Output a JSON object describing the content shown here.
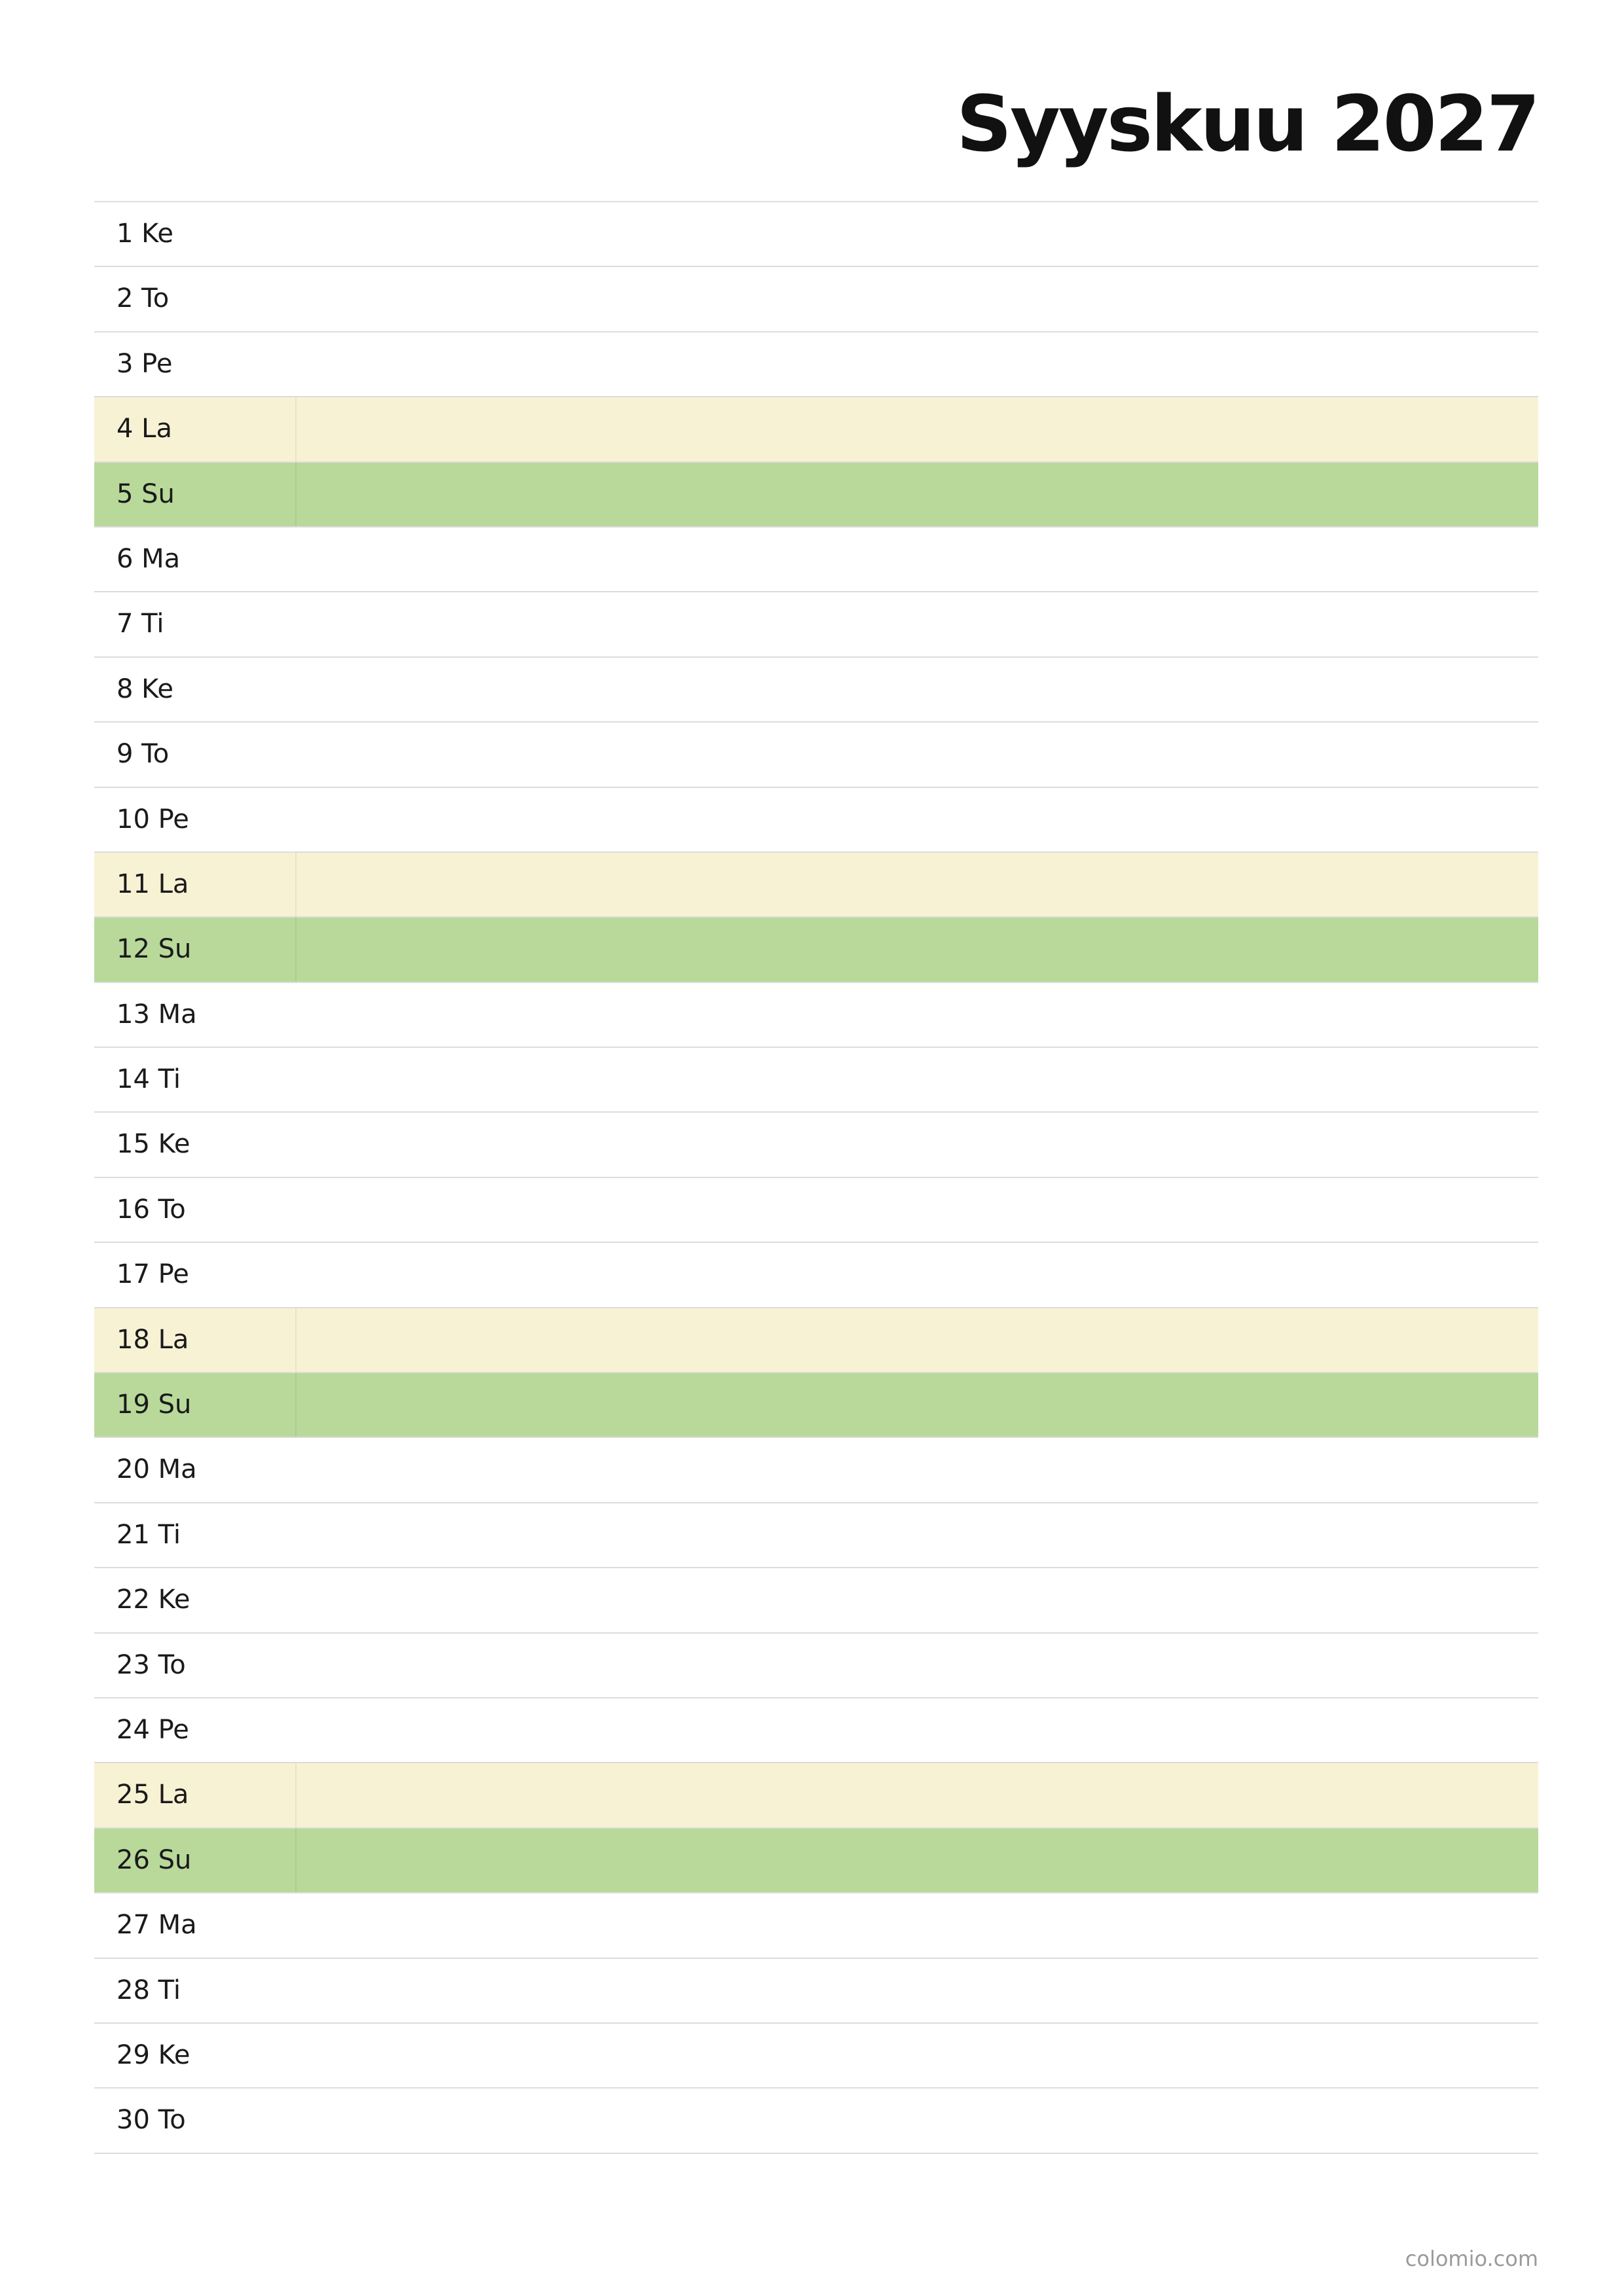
{
  "header": {
    "title": "Syyskuu 2027"
  },
  "rows": [
    {
      "label": "1 Ke"
    },
    {
      "label": "2 To"
    },
    {
      "label": "3 Pe"
    },
    {
      "label": "4 La",
      "color": "#f8f2d4"
    },
    {
      "label": "5 Su",
      "color": "#b8d99a"
    },
    {
      "label": "6 Ma"
    },
    {
      "label": "7 Ti"
    },
    {
      "label": "8 Ke"
    },
    {
      "label": "9 To"
    },
    {
      "label": "10 Pe"
    },
    {
      "label": "11 La",
      "color": "#f8f2d4"
    },
    {
      "label": "12 Su",
      "color": "#b8d99a"
    },
    {
      "label": "13 Ma"
    },
    {
      "label": "14 Ti"
    },
    {
      "label": "15 Ke"
    },
    {
      "label": "16 To"
    },
    {
      "label": "17 Pe"
    },
    {
      "label": "18 La",
      "color": "#f8f2d4"
    },
    {
      "label": "19 Su",
      "color": "#b8d99a"
    },
    {
      "label": "20 Ma"
    },
    {
      "label": "21 Ti"
    },
    {
      "label": "22 Ke"
    },
    {
      "label": "23 To"
    },
    {
      "label": "24 Pe"
    },
    {
      "label": "25 La",
      "color": "#f8f2d4"
    },
    {
      "label": "26 Su",
      "color": "#b8d99a"
    },
    {
      "label": "27 Ma"
    },
    {
      "label": "28 Ti"
    },
    {
      "label": "29 Ke"
    },
    {
      "label": "30 To"
    }
  ],
  "footer": {
    "text": "colomio.com"
  }
}
